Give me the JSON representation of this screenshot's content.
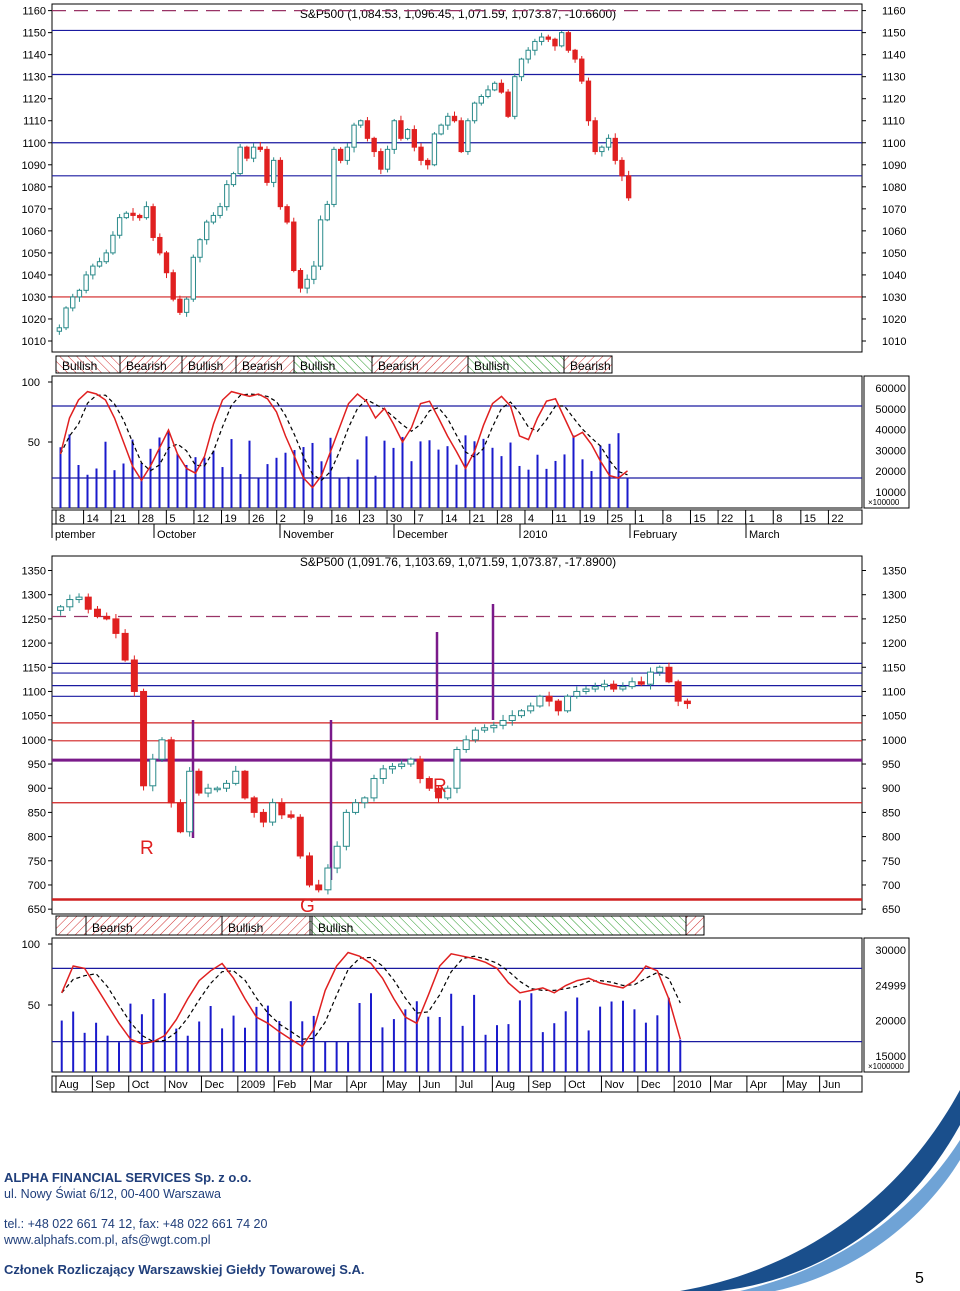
{
  "chart_data": [
    {
      "type": "candlestick",
      "title": "S&P500 (1,084.53, 1,096.45, 1,071.59, 1,073.87, -10.6600)",
      "ylim": [
        1005,
        1163
      ],
      "y_ticks": [
        "1160",
        "1150",
        "1140",
        "1130",
        "1120",
        "1110",
        "1100",
        "1090",
        "1080",
        "1070",
        "1060",
        "1050",
        "1040",
        "1030",
        "1020",
        "1010"
      ],
      "x_ticks": [
        "8",
        "14",
        "21",
        "28",
        "5",
        "12",
        "19",
        "26",
        "2",
        "9",
        "16",
        "23",
        "30",
        "7",
        "14",
        "21",
        "28",
        "4",
        "11",
        "19",
        "25",
        "1",
        "8",
        "15",
        "22",
        "1",
        "8",
        "15",
        "22"
      ],
      "month_labels": [
        "ptember",
        "October",
        "November",
        "December",
        "2010",
        "February",
        "March"
      ],
      "horizontal_levels": [
        {
          "value": 1160,
          "color": "#993366",
          "style": "dashed"
        },
        {
          "value": 1151,
          "color": "#1a1aa0"
        },
        {
          "value": 1131,
          "color": "#1a1aa0"
        },
        {
          "value": 1100,
          "color": "#1a1aa0"
        },
        {
          "value": 1085,
          "color": "#1a1aa0"
        },
        {
          "value": 1030,
          "color": "#d02020"
        }
      ],
      "closes": [
        1016,
        1025,
        1030,
        1033,
        1040,
        1044,
        1046,
        1050,
        1058,
        1066,
        1068,
        1067,
        1066,
        1071,
        1057,
        1050,
        1041,
        1029,
        1023,
        1029,
        1048,
        1056,
        1064,
        1067,
        1071,
        1081,
        1086,
        1098,
        1093,
        1098,
        1097,
        1082,
        1092,
        1071,
        1064,
        1042,
        1034,
        1038,
        1044,
        1065,
        1072,
        1097,
        1092,
        1098,
        1108,
        1110,
        1102,
        1096,
        1088,
        1097,
        1110,
        1102,
        1106,
        1098,
        1092,
        1090,
        1104,
        1108,
        1112,
        1110,
        1096,
        1110,
        1118,
        1121,
        1124,
        1127,
        1123,
        1112,
        1130,
        1138,
        1142,
        1146,
        1148,
        1147,
        1144,
        1150,
        1142,
        1138,
        1128,
        1110,
        1096,
        1098,
        1102,
        1092,
        1085,
        1075
      ]
    },
    {
      "type": "stochastic_volume",
      "ylim": [
        0,
        100
      ],
      "y_ticks": [
        "100",
        "50"
      ],
      "volume_ticks": [
        "60000",
        "50000",
        "40000",
        "30000",
        "20000",
        "10000"
      ],
      "volume_unit": "100000",
      "regimes": [
        {
          "label": "Bullish",
          "pattern": "diag-up"
        },
        {
          "label": "Bearish",
          "pattern": "diag-down"
        },
        {
          "label": "Bullish",
          "pattern": "diag-down"
        },
        {
          "label": "Bearish",
          "pattern": "diag-down"
        },
        {
          "label": "Bullish",
          "pattern": "green"
        },
        {
          "label": "Bearish",
          "pattern": "diag-down"
        },
        {
          "label": "Bullish",
          "pattern": "green"
        },
        {
          "label": "Bearish",
          "pattern": "diag-down"
        }
      ],
      "levels": [
        80,
        20
      ],
      "k_values": [
        40,
        70,
        85,
        92,
        90,
        85,
        70,
        50,
        30,
        18,
        30,
        45,
        60,
        40,
        28,
        24,
        38,
        65,
        85,
        92,
        90,
        88,
        90,
        86,
        75,
        55,
        38,
        20,
        12,
        22,
        42,
        62,
        82,
        90,
        84,
        70,
        78,
        65,
        50,
        62,
        82,
        84,
        70,
        55,
        42,
        28,
        42,
        64,
        82,
        88,
        80,
        55,
        52,
        70,
        84,
        86,
        70,
        54,
        58,
        48,
        34,
        22,
        20,
        26
      ]
    },
    {
      "type": "candlestick",
      "title": "S&P500 (1,091.76, 1,103.69, 1,071.59, 1,073.87, -17.8900)",
      "ylim": [
        640,
        1380
      ],
      "y_ticks": [
        "1350",
        "1300",
        "1250",
        "1200",
        "1150",
        "1100",
        "1050",
        "1000",
        "950",
        "900",
        "850",
        "800",
        "750",
        "700",
        "650"
      ],
      "x_ticks": [
        "Aug",
        "Sep",
        "Oct",
        "Nov",
        "Dec",
        "2009",
        "Feb",
        "Mar",
        "Apr",
        "May",
        "Jun",
        "Jul",
        "Aug",
        "Sep",
        "Oct",
        "Nov",
        "Dec",
        "2010",
        "Mar",
        "Apr",
        "May",
        "Jun"
      ],
      "annotations": [
        {
          "text": "R",
          "color": "#e02020"
        },
        {
          "text": "R",
          "color": "#e02020"
        },
        {
          "text": "G",
          "color": "#e02020"
        }
      ],
      "horizontal_levels": [
        {
          "value": 1255,
          "color": "#993366",
          "style": "dashed"
        },
        {
          "value": 1158,
          "color": "#1a1aa0"
        },
        {
          "value": 1138,
          "color": "#1a1aa0"
        },
        {
          "value": 1112,
          "color": "#1a1aa0"
        },
        {
          "value": 1090,
          "color": "#1a1aa0"
        },
        {
          "value": 1035,
          "color": "#d02020"
        },
        {
          "value": 998,
          "color": "#d02020"
        },
        {
          "value": 958,
          "color": "#7a1a8a",
          "width": 3
        },
        {
          "value": 870,
          "color": "#d02020"
        },
        {
          "value": 670,
          "color": "#d02020",
          "width": 2.5
        }
      ],
      "closes": [
        1275,
        1290,
        1295,
        1270,
        1255,
        1250,
        1220,
        1165,
        1100,
        905,
        960,
        1000,
        870,
        810,
        935,
        890,
        900,
        900,
        910,
        935,
        880,
        850,
        830,
        870,
        845,
        840,
        760,
        700,
        690,
        735,
        780,
        850,
        870,
        880,
        920,
        940,
        945,
        950,
        960,
        920,
        900,
        880,
        900,
        980,
        1000,
        1020,
        1025,
        1030,
        1040,
        1050,
        1060,
        1070,
        1090,
        1080,
        1060,
        1090,
        1100,
        1105,
        1110,
        1115,
        1105,
        1110,
        1120,
        1115,
        1140,
        1150,
        1120,
        1080,
        1075
      ]
    },
    {
      "type": "stochastic_volume",
      "ylim": [
        0,
        100
      ],
      "y_ticks": [
        "100",
        "50"
      ],
      "volume_ticks": [
        "30000",
        "24999",
        "20000",
        "15000"
      ],
      "volume_unit": "1000000",
      "regimes": [
        {
          "label": "",
          "pattern": "diag-down"
        },
        {
          "label": "Bearish",
          "pattern": "diag-down"
        },
        {
          "label": "Bullish",
          "pattern": "diag-down"
        },
        {
          "label": "",
          "pattern": "green"
        },
        {
          "label": "Bullish",
          "pattern": "green"
        },
        {
          "label": "",
          "pattern": "diag-down"
        }
      ],
      "levels": [
        80,
        20
      ],
      "k_values": [
        60,
        82,
        80,
        65,
        50,
        35,
        22,
        18,
        20,
        25,
        38,
        55,
        70,
        78,
        84,
        72,
        55,
        40,
        35,
        28,
        22,
        16,
        30,
        62,
        82,
        93,
        90,
        84,
        72,
        55,
        40,
        35,
        58,
        82,
        92,
        90,
        88,
        85,
        80,
        68,
        60,
        62,
        64,
        60,
        66,
        70,
        72,
        68,
        66,
        64,
        70,
        82,
        78,
        55,
        22
      ]
    }
  ],
  "footer": {
    "company": "ALPHA FINANCIAL SERVICES Sp. z o.o.",
    "address": "ul. Nowy Świat 6/12, 00-400 Warszawa",
    "phone": "tel.: +48 022 661 74 12, fax: +48 022 661 74 20",
    "web": "www.alphafs.com.pl, afs@wgt.com.pl",
    "member": "Członek Rozliczający Warszawskiej Giełdy Towarowej S.A.",
    "page_number": "5"
  },
  "colors": {
    "up": "#2a8a8a",
    "down": "#e02020",
    "blue_line": "#1a1aa0",
    "footer_text": "#1f3e7a",
    "swoosh": "#1a4f8c"
  }
}
